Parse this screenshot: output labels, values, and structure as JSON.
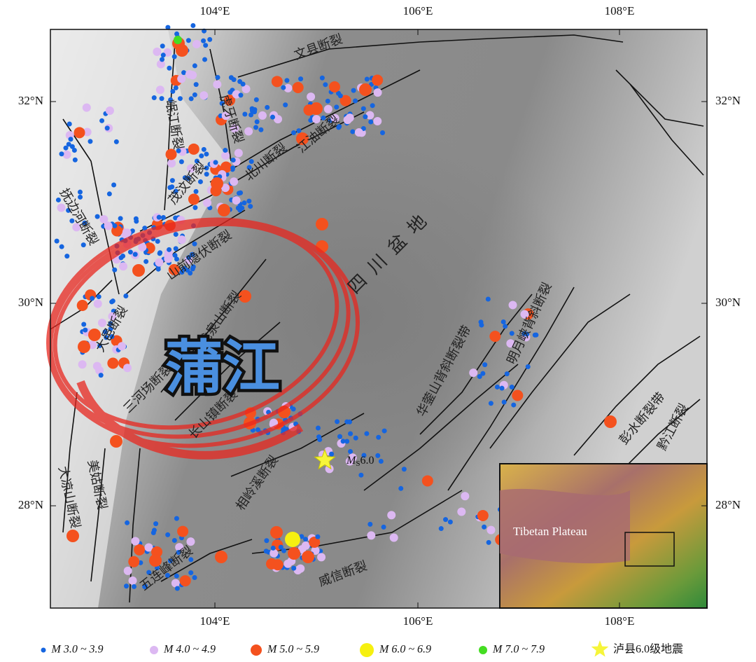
{
  "map": {
    "x_ticks": [
      "104°E",
      "106°E",
      "108°E"
    ],
    "y_ticks": [
      "32°N",
      "30°N",
      "28°N"
    ],
    "fault_labels": [
      "文县断裂",
      "岷江断裂",
      "虎牙断裂",
      "江油断裂",
      "北川断裂",
      "茂汶断裂",
      "抚边河断裂",
      "山前隐伏断裂",
      "龙泉山断裂",
      "大邑断裂",
      "三河场断裂",
      "长山镇断裂",
      "华蓥山背斜断裂带",
      "明月峡背斜断裂",
      "彭水断裂带",
      "黔江断裂",
      "大凉山断裂",
      "美姑断裂",
      "相岭溪断裂",
      "五连峰断裂",
      "威信断裂"
    ],
    "basin": "四川盆地",
    "overlay": "蒲江",
    "epicenter": {
      "symbol": "M",
      "subscript": "S",
      "magnitude": "6.0"
    },
    "inset_label": "Tibetan Plateau"
  },
  "legend": [
    "M 3.0 ~ 3.9",
    "M 4.0 ~ 4.9",
    "M 5.0 ~ 5.9",
    "M 6.0 ~ 6.9",
    "M 7.0 ~ 7.9",
    "泸县6.0级地震"
  ]
}
